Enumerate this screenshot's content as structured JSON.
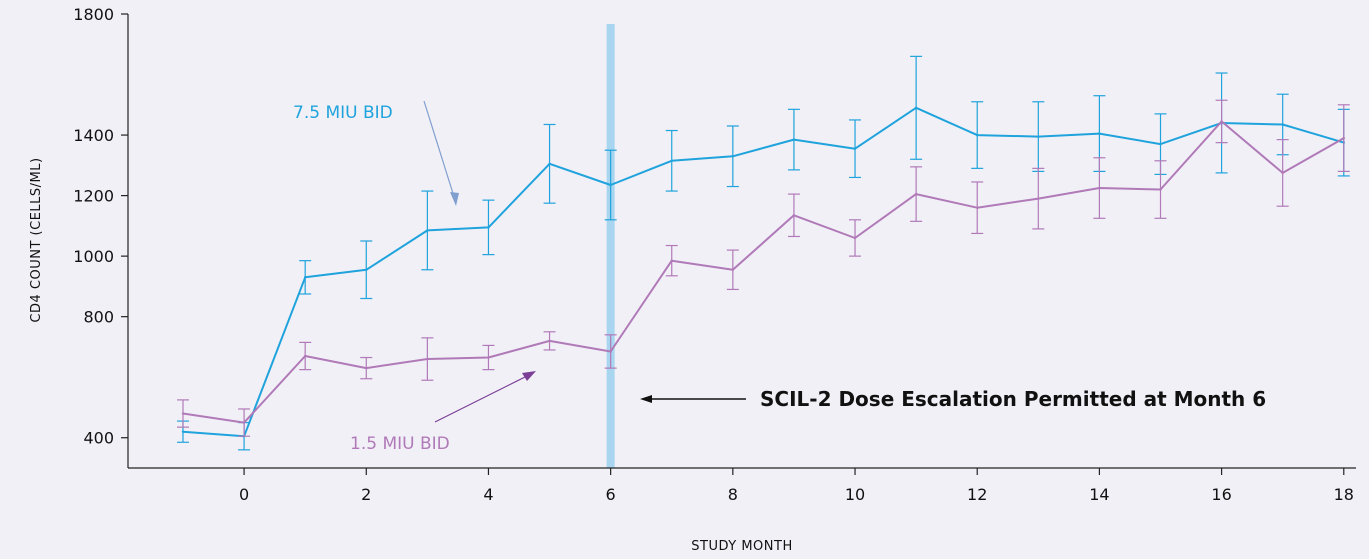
{
  "chart_data": {
    "type": "line",
    "title": "",
    "xlabel": "STUDY MONTH",
    "ylabel": "CD4 COUNT (CELLS/ML)",
    "xlim": [
      -1.9,
      18.2
    ],
    "ylim": [
      300,
      1800
    ],
    "xticks": [
      0,
      2,
      4,
      6,
      8,
      10,
      12,
      14,
      16,
      18
    ],
    "yticks": [
      400,
      800,
      1000,
      1200,
      1400,
      1800
    ],
    "grid": false,
    "x": [
      -1,
      0,
      1,
      2,
      3,
      4,
      5,
      6,
      7,
      8,
      9,
      10,
      11,
      12,
      13,
      14,
      15,
      16,
      17,
      18
    ],
    "series": [
      {
        "name": "7.5 MIU BID",
        "color": "#1fa3dc",
        "values": [
          420,
          405,
          930,
          955,
          1085,
          1095,
          1305,
          1235,
          1315,
          1330,
          1385,
          1355,
          1490,
          1400,
          1395,
          1405,
          1370,
          1440,
          1435,
          1375
        ],
        "error": [
          35,
          45,
          55,
          95,
          130,
          90,
          130,
          115,
          100,
          100,
          100,
          95,
          170,
          110,
          115,
          125,
          100,
          165,
          100,
          110
        ]
      },
      {
        "name": "1.5 MIU BID",
        "color": "#b07ab8",
        "values": [
          480,
          450,
          670,
          630,
          660,
          665,
          720,
          685,
          985,
          955,
          1135,
          1060,
          1205,
          1160,
          1190,
          1225,
          1220,
          1445,
          1275,
          1390
        ],
        "error": [
          45,
          45,
          45,
          35,
          70,
          40,
          30,
          55,
          50,
          65,
          70,
          60,
          90,
          85,
          100,
          100,
          95,
          70,
          110,
          110
        ]
      }
    ],
    "vline": {
      "x": 6,
      "color": "#a8d5ef"
    },
    "annotations": {
      "escalation": "SCIL-2 Dose Escalation Permitted at Month 6"
    }
  }
}
